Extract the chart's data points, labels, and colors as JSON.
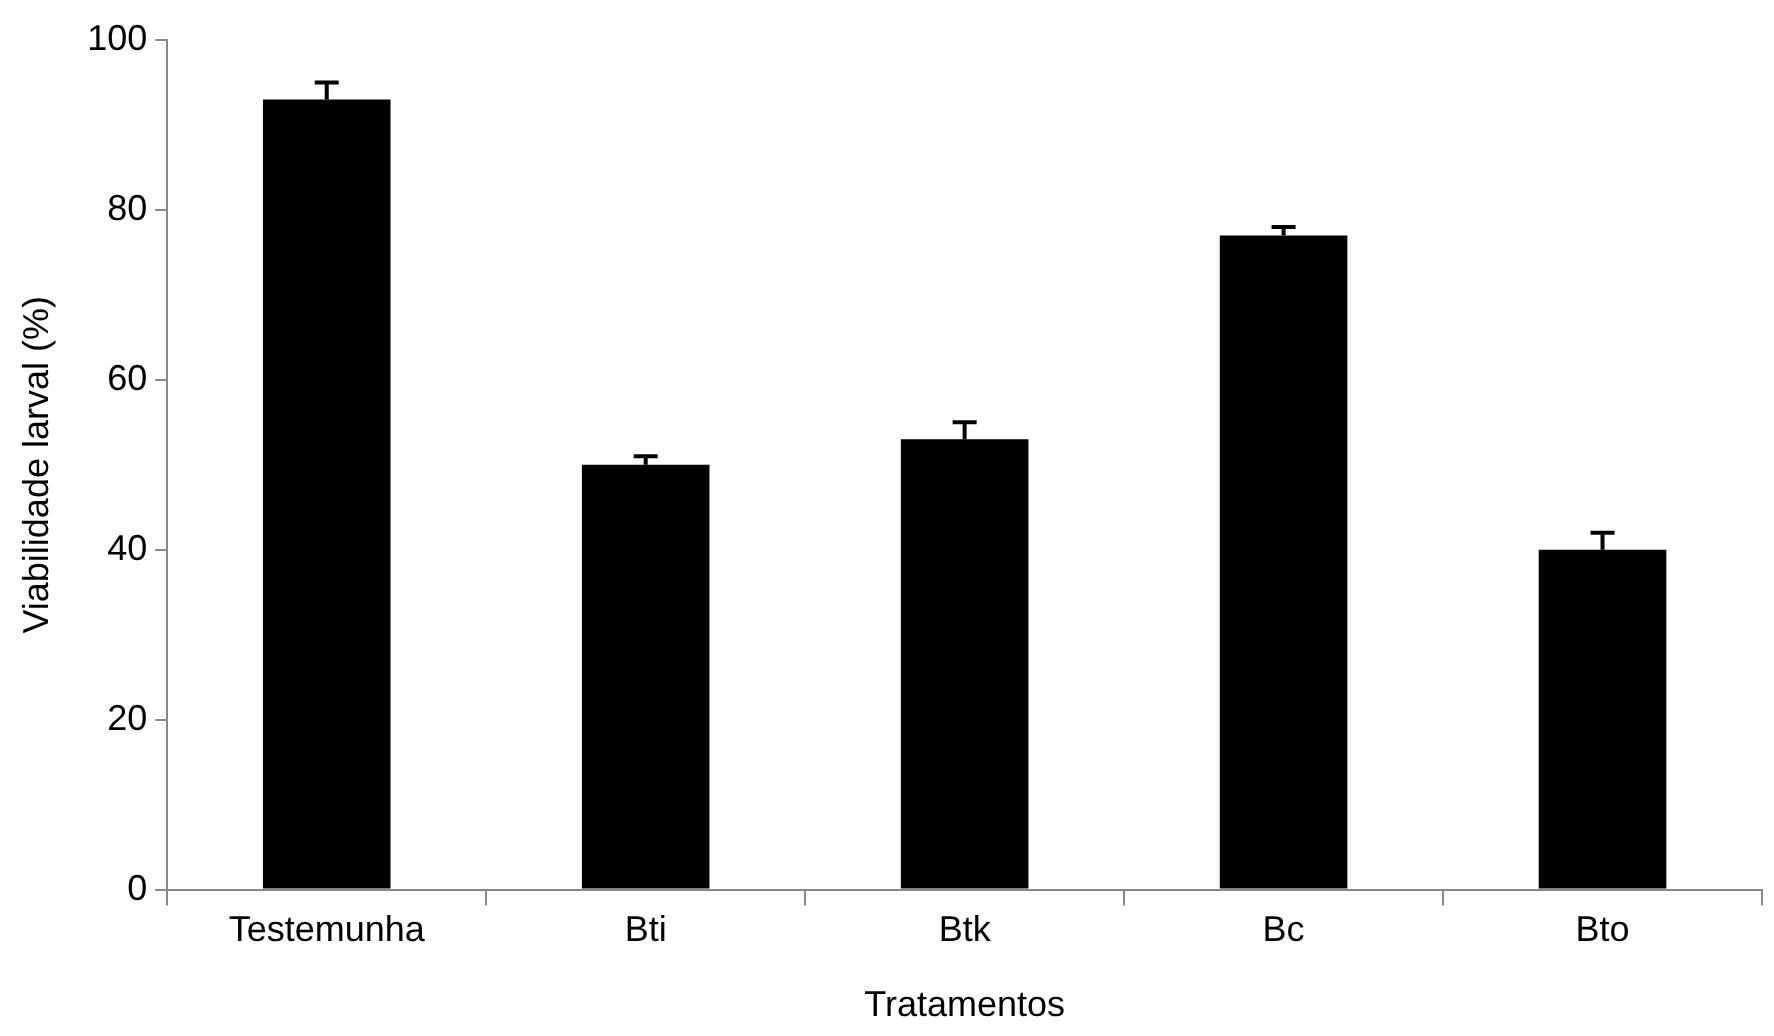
{
  "chart_data": {
    "type": "bar",
    "xlabel": "Tratamentos",
    "ylabel": "Viabilidade larval (%)",
    "categories": [
      "Testemunha",
      "Bti",
      "Btk",
      "Bc",
      "Bto"
    ],
    "values": [
      93,
      50,
      53,
      77,
      40
    ],
    "errors": [
      [
        93,
        95
      ],
      [
        50,
        51
      ],
      [
        53,
        55
      ],
      [
        77,
        78
      ],
      [
        40,
        42
      ]
    ],
    "color": "#000000",
    "ylim": [
      0,
      100
    ],
    "yticks": [
      0,
      20,
      40,
      60,
      80,
      100
    ],
    "grid": false,
    "legend": false
  }
}
